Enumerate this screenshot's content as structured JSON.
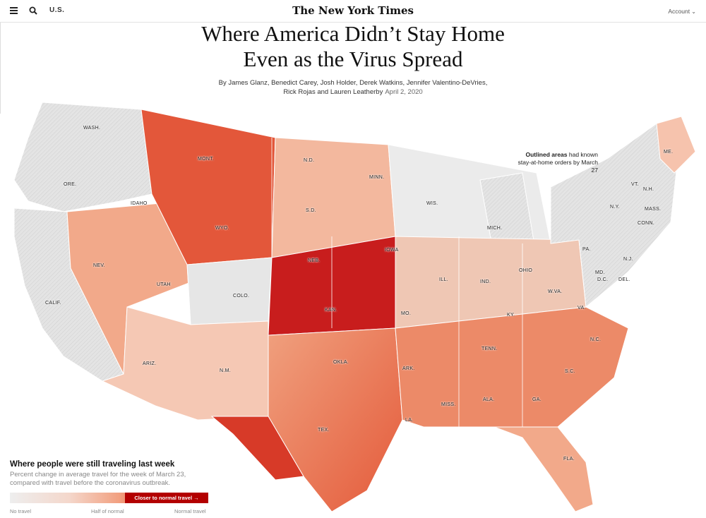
{
  "nav": {
    "edition": "U.S.",
    "masthead": "The New York Times",
    "account": "Account"
  },
  "article": {
    "headline_line1": "Where America Didn’t Stay Home",
    "headline_line2": "Even as the Virus Spread",
    "byline_line1": "By James Glanz, Benedict Carey, Josh Holder, Derek Watkins, Jennifer Valentino-DeVries,",
    "byline_line2": "Rick Rojas and Lauren Leatherby",
    "date": "April 2, 2020"
  },
  "map": {
    "annotation_bold": "Outlined areas",
    "annotation_rest": " had known stay-at-home orders by March 27",
    "state_labels": [
      "WASH.",
      "ORE.",
      "CALIF.",
      "IDAHO",
      "NEV.",
      "MONT.",
      "WYO.",
      "UTAH",
      "ARIZ.",
      "COLO.",
      "N.M.",
      "N.D.",
      "S.D.",
      "NEB.",
      "KAN.",
      "OKLA.",
      "TEX.",
      "MINN.",
      "IOWA",
      "MO.",
      "ARK.",
      "LA.",
      "WIS.",
      "ILL.",
      "MISS.",
      "MICH.",
      "IND.",
      "OHIO",
      "KY.",
      "TENN.",
      "ALA.",
      "GA.",
      "FLA.",
      "S.C.",
      "N.C.",
      "VA.",
      "W.VA.",
      "PA.",
      "N.Y.",
      "MD.",
      "D.C.",
      "DEL.",
      "N.J.",
      "CONN.",
      "MASS.",
      "VT.",
      "N.H.",
      "ME."
    ],
    "colors": {
      "no_travel": "#e6e6e6",
      "half": "#f2a080",
      "normal": "#b30000"
    }
  },
  "legend": {
    "title": "Where people were still traveling last week",
    "subtitle": "Percent change in average travel for the week of March 23, compared with travel before the coronavirus outbreak.",
    "tag": "Closer to normal travel →",
    "ticks": [
      "No travel",
      "Half of normal",
      "Normal travel"
    ]
  }
}
